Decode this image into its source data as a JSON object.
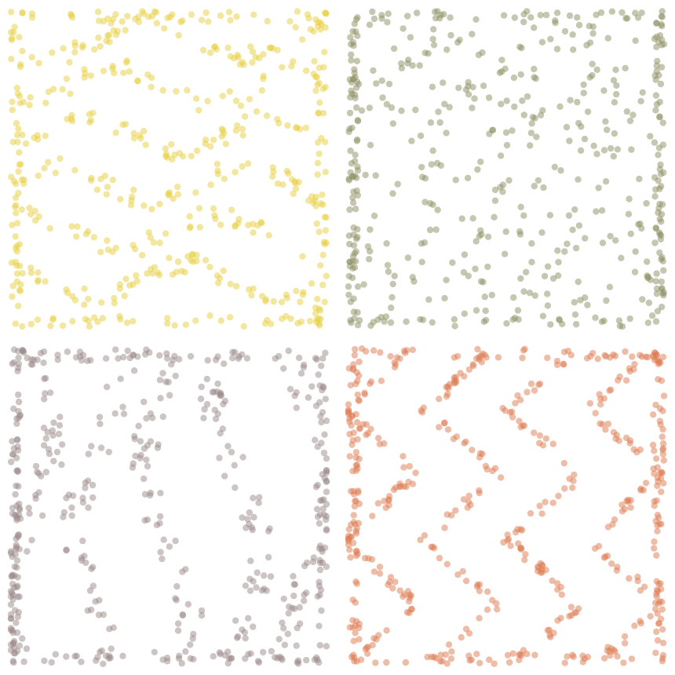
{
  "panels": [
    {
      "id": "gold",
      "color": "#e8cf3f",
      "opacity": 0.5,
      "pattern": "wave-rows",
      "seed": 11,
      "count": 520
    },
    {
      "id": "olive",
      "color": "#8d8f62",
      "opacity": 0.5,
      "pattern": "random-dense-edges",
      "seed": 27,
      "count": 520
    },
    {
      "id": "mauve",
      "color": "#9c8a89",
      "opacity": 0.5,
      "pattern": "wave-columns",
      "seed": 43,
      "count": 520
    },
    {
      "id": "terracotta",
      "color": "#de7b52",
      "opacity": 0.5,
      "pattern": "zigzag-columns",
      "seed": 59,
      "count": 560
    }
  ]
}
